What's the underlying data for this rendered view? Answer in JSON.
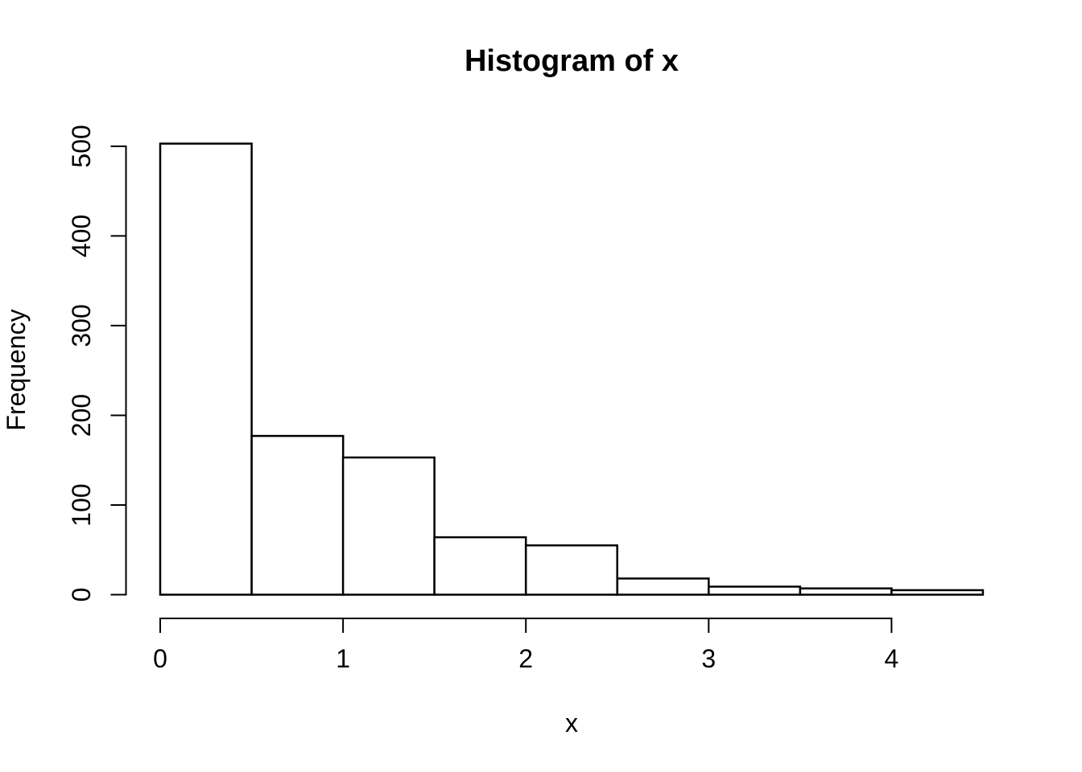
{
  "chart_data": {
    "type": "bar",
    "subtype": "histogram",
    "title": "Histogram of x",
    "xlabel": "x",
    "ylabel": "Frequency",
    "bin_edges": [
      0,
      0.5,
      1.0,
      1.5,
      2.0,
      2.5,
      3.0,
      3.5,
      4.0,
      4.5
    ],
    "counts": [
      503,
      177,
      153,
      64,
      55,
      18,
      9,
      7,
      5
    ],
    "x_ticks": [
      0,
      1,
      2,
      3,
      4
    ],
    "y_ticks": [
      0,
      100,
      200,
      300,
      400,
      500
    ],
    "xlim": [
      0,
      4.5
    ],
    "ylim": [
      0,
      500
    ],
    "grid": false,
    "legend": null,
    "bar_fill": "#ffffff",
    "bar_stroke": "#000000",
    "axis_color": "#000000",
    "background": "#ffffff"
  }
}
